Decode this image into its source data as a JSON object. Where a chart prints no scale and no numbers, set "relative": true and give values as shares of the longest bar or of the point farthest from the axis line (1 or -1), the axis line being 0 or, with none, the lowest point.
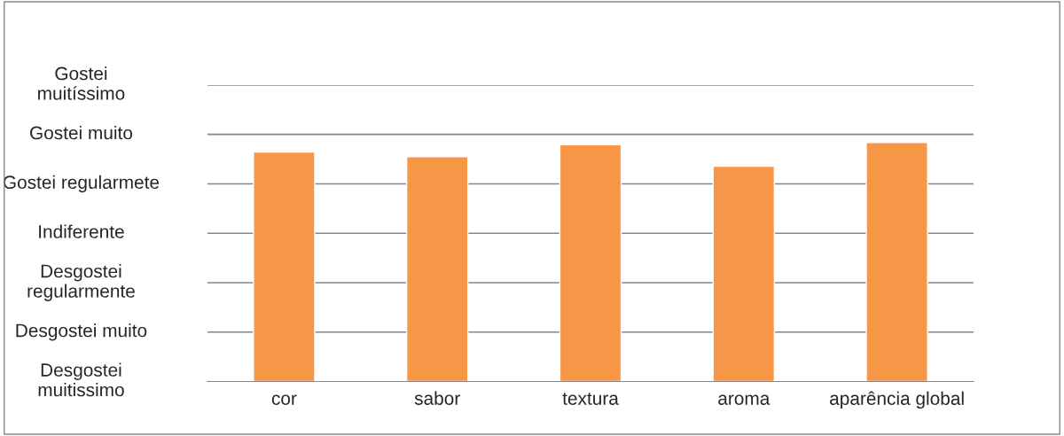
{
  "chart_data": {
    "type": "bar",
    "categories": [
      "cor",
      "sabor",
      "textura",
      "aroma",
      "aparência global"
    ],
    "values": [
      0.96,
      0.94,
      0.99,
      0.9,
      1
    ],
    "color": "#f79646",
    "relative": true,
    "annotations": [
      "Desgostei\nmuitissimo",
      "Desgostei muito",
      "Desgostei\nregularmente",
      "Indiferente",
      "Gostei regularmete",
      "Gostei muito",
      "Gostei\nmuitíssimo"
    ],
    "grid": "y",
    "legend": false
  }
}
